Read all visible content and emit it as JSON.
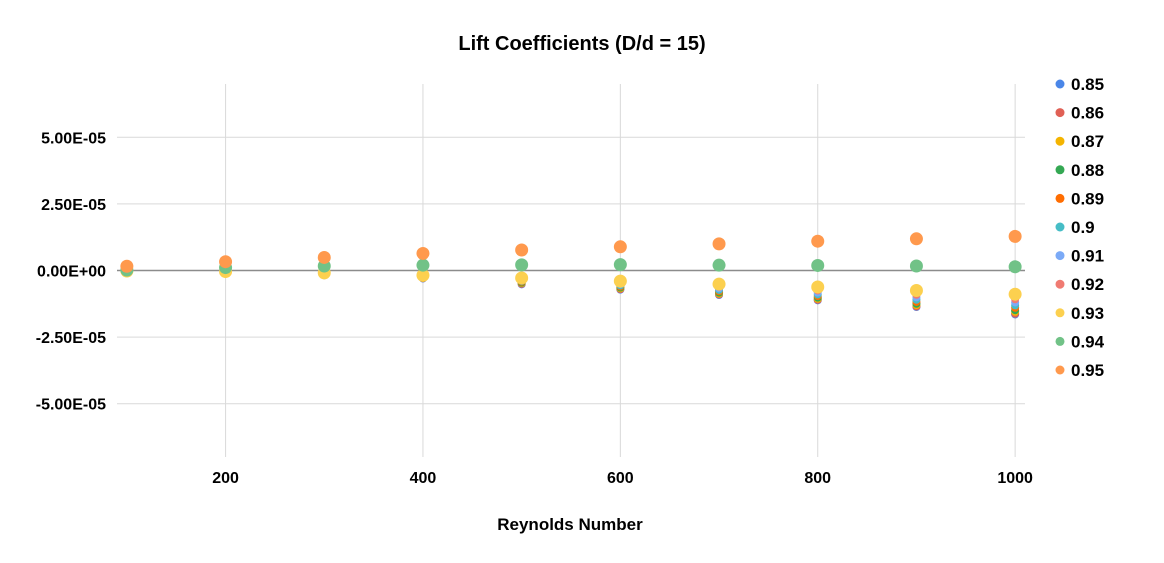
{
  "chart_data": {
    "type": "scatter",
    "title": "Lift Coefficients (D/d = 15)",
    "xlabel": "Reynolds Number",
    "ylabel": "",
    "xlim": [
      90,
      1010
    ],
    "ylim": [
      -7e-05,
      7e-05
    ],
    "x_ticks": [
      200,
      400,
      600,
      800,
      1000
    ],
    "x_tick_labels": [
      "200",
      "400",
      "600",
      "800",
      "1000"
    ],
    "y_ticks": [
      5e-05,
      2.5e-05,
      0,
      -2.5e-05,
      -5e-05
    ],
    "y_tick_labels": [
      "5.00E-05",
      "2.50E-05",
      "0.00E+00",
      "-2.50E-05",
      "-5.00E-05"
    ],
    "grid": true,
    "legend_position": "right",
    "x": [
      100,
      200,
      300,
      400,
      500,
      600,
      700,
      800,
      900,
      1000
    ],
    "series": [
      {
        "name": "0.85",
        "color": "#4a86e8",
        "size": "small",
        "values": [
          -3e-07,
          -9e-07,
          -1.8e-06,
          -3e-06,
          -5.2e-06,
          -7.2e-06,
          -9.2e-06,
          -1.12e-05,
          -1.37e-05,
          -1.65e-05
        ]
      },
      {
        "name": "0.86",
        "color": "#e06055",
        "size": "small",
        "values": [
          -3e-07,
          -9e-07,
          -1.7e-06,
          -2.9e-06,
          -5e-06,
          -7e-06,
          -9e-06,
          -1.1e-05,
          -1.35e-05,
          -1.62e-05
        ]
      },
      {
        "name": "0.87",
        "color": "#f4b400",
        "size": "small",
        "values": [
          -3e-07,
          -8e-07,
          -1.6e-06,
          -2.8e-06,
          -4.7e-06,
          -6.7e-06,
          -8.7e-06,
          -1.06e-05,
          -1.3e-05,
          -1.55e-05
        ]
      },
      {
        "name": "0.88",
        "color": "#34a853",
        "size": "small",
        "values": [
          -2e-07,
          -8e-07,
          -1.5e-06,
          -2.7e-06,
          -4.5e-06,
          -6.4e-06,
          -8.3e-06,
          -1.02e-05,
          -1.25e-05,
          -1.49e-05
        ]
      },
      {
        "name": "0.89",
        "color": "#ff6d01",
        "size": "small",
        "values": [
          -2e-07,
          -7e-07,
          -1.4e-06,
          -2.5e-06,
          -4.2e-06,
          -6e-06,
          -7.8e-06,
          -9.6e-06,
          -1.18e-05,
          -1.4e-05
        ]
      },
      {
        "name": "0.9",
        "color": "#46bdc6",
        "size": "small",
        "values": [
          -2e-07,
          -7e-07,
          -1.3e-06,
          -2.3e-06,
          -3.9e-06,
          -5.6e-06,
          -7.3e-06,
          -9e-06,
          -1.1e-05,
          -1.31e-05
        ]
      },
      {
        "name": "0.91",
        "color": "#7baaf7",
        "size": "small",
        "values": [
          -2e-07,
          -6e-07,
          -1.2e-06,
          -2.1e-06,
          -3.6e-06,
          -5.1e-06,
          -6.7e-06,
          -8.3e-06,
          -1.01e-05,
          -1.2e-05
        ]
      },
      {
        "name": "0.92",
        "color": "#f07b72",
        "size": "small",
        "values": [
          -2e-07,
          -6e-07,
          -1.1e-06,
          -1.9e-06,
          -3.2e-06,
          -4.6e-06,
          -6.1e-06,
          -7.5e-06,
          -9.1e-06,
          -1.08e-05
        ]
      },
      {
        "name": "0.93",
        "color": "#fcd04f",
        "size": "large",
        "values": [
          -2e-07,
          -4e-07,
          -9e-07,
          -1.8e-06,
          -2.8e-06,
          -4e-06,
          -5.1e-06,
          -6.2e-06,
          -7.5e-06,
          -8.9e-06
        ]
      },
      {
        "name": "0.94",
        "color": "#71c287",
        "size": "large",
        "values": [
          2e-07,
          1.1e-06,
          1.7e-06,
          2e-06,
          2.1e-06,
          2.2e-06,
          2e-06,
          1.9e-06,
          1.7e-06,
          1.4e-06
        ]
      },
      {
        "name": "0.95",
        "color": "#ff994d",
        "size": "large",
        "values": [
          1.6e-06,
          3.3e-06,
          4.9e-06,
          6.4e-06,
          7.7e-06,
          8.9e-06,
          1e-05,
          1.1e-05,
          1.19e-05,
          1.28e-05
        ]
      }
    ]
  }
}
